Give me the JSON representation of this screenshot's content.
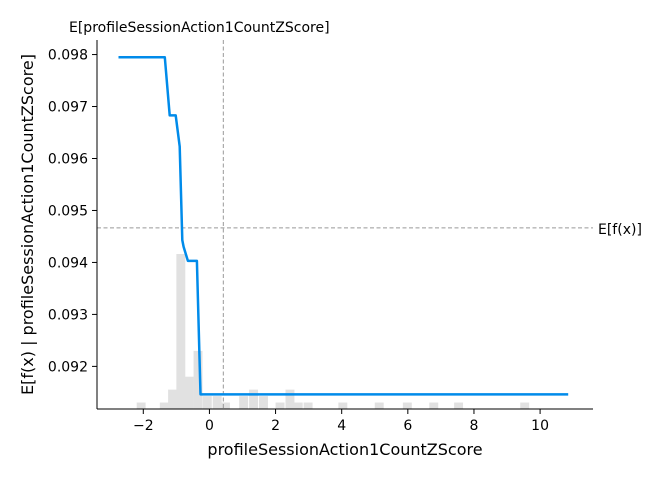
{
  "chart_data": {
    "type": "line",
    "title": "",
    "xlabel": "profileSessionAction1CountZScore",
    "ylabel": "E[f(x) | profileSessionAction1CountZScore]",
    "xlim": [
      -3.4,
      11.6
    ],
    "ylim": [
      0.09118,
      0.09828
    ],
    "x_ticks": [
      -2,
      0,
      2,
      4,
      6,
      8,
      10
    ],
    "x_tick_labels": [
      "−2",
      "0",
      "2",
      "4",
      "6",
      "8",
      "10"
    ],
    "y_ticks": [
      0.092,
      0.093,
      0.094,
      0.095,
      0.096,
      0.097,
      0.098
    ],
    "y_tick_labels": [
      "0.092",
      "0.093",
      "0.094",
      "0.095",
      "0.096",
      "0.097",
      "0.098"
    ],
    "grid": false,
    "series": [
      {
        "color": "#008bea",
        "x": [
          -2.75,
          -1.35,
          -1.2,
          -1.02,
          -0.9,
          -0.82,
          -0.78,
          -0.65,
          -0.38,
          -0.27,
          10.85
        ],
        "y": [
          0.09795,
          0.09795,
          0.09683,
          0.09683,
          0.09623,
          0.09443,
          0.0943,
          0.09403,
          0.09403,
          0.09146,
          0.09146
        ]
      }
    ],
    "histogram": {
      "color": "#e1e1e1",
      "bin_width": 0.27,
      "bins": [
        {
          "x": -2.2,
          "count": 1
        },
        {
          "x": -1.5,
          "count": 1
        },
        {
          "x": -1.25,
          "count": 3
        },
        {
          "x": -1.0,
          "count": 24
        },
        {
          "x": -0.75,
          "count": 5
        },
        {
          "x": -0.48,
          "count": 9
        },
        {
          "x": -0.2,
          "count": 2
        },
        {
          "x": 0.1,
          "count": 2
        },
        {
          "x": 0.35,
          "count": 1
        },
        {
          "x": 0.9,
          "count": 2
        },
        {
          "x": 1.2,
          "count": 3
        },
        {
          "x": 1.5,
          "count": 2
        },
        {
          "x": 2.0,
          "count": 1
        },
        {
          "x": 2.3,
          "count": 3
        },
        {
          "x": 2.55,
          "count": 1
        },
        {
          "x": 2.85,
          "count": 1
        },
        {
          "x": 3.9,
          "count": 1
        },
        {
          "x": 5.0,
          "count": 1
        },
        {
          "x": 5.85,
          "count": 1
        },
        {
          "x": 6.65,
          "count": 1
        },
        {
          "x": 7.4,
          "count": 1
        },
        {
          "x": 9.4,
          "count": 1
        }
      ]
    },
    "reference_lines": {
      "expected_x": {
        "value": 0.42,
        "label": "E[profileSessionAction1CountZScore]"
      },
      "expected_fx": {
        "value": 0.094665,
        "label": "E[f(x)]"
      }
    }
  }
}
